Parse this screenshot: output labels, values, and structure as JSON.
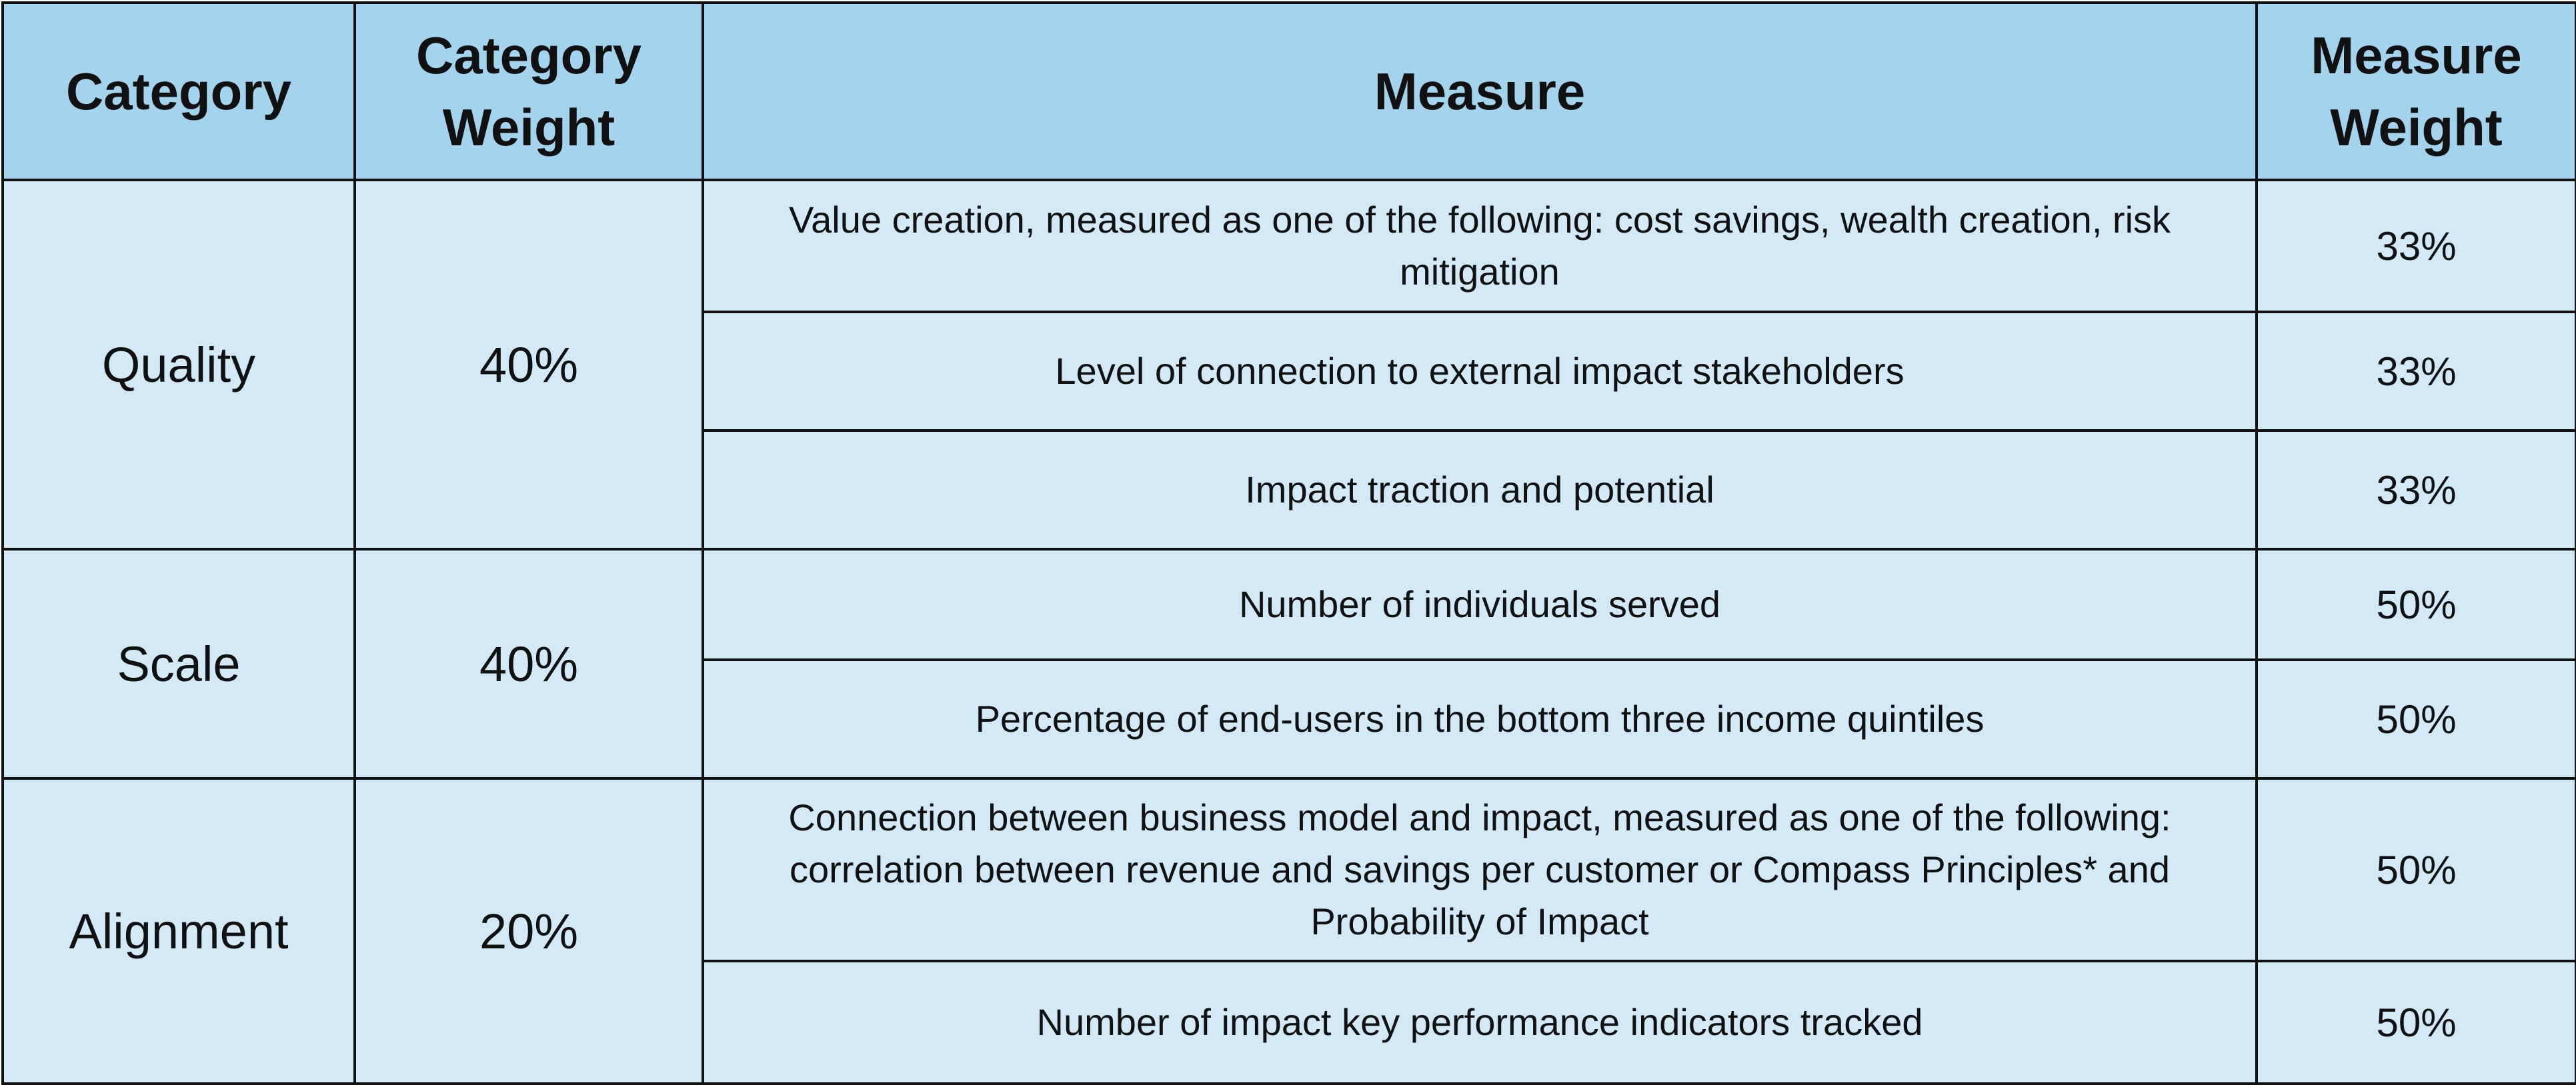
{
  "header": {
    "category": "Category",
    "category_weight": "Category Weight",
    "measure": "Measure",
    "measure_weight": "Measure Weight"
  },
  "categories": [
    {
      "name": "Quality",
      "weight": "40%",
      "measures": [
        {
          "text": "Value creation, measured as one of the following: cost savings, wealth creation, risk mitigation",
          "weight": "33%"
        },
        {
          "text": "Level of connection to external impact stakeholders",
          "weight": "33%"
        },
        {
          "text": "Impact traction and potential",
          "weight": "33%"
        }
      ]
    },
    {
      "name": "Scale",
      "weight": "40%",
      "measures": [
        {
          "text": "Number of individuals served",
          "weight": "50%"
        },
        {
          "text": "Percentage of end-users in the bottom three income quintiles",
          "weight": "50%"
        }
      ]
    },
    {
      "name": "Alignment",
      "weight": "20%",
      "measures": [
        {
          "text": "Connection between business model and impact, measured as one of the following: correlation between revenue and savings per customer or Compass Principles* and Probability of Impact",
          "weight": "50%"
        },
        {
          "text": "Number of impact key performance indicators tracked",
          "weight": "50%"
        }
      ]
    }
  ],
  "colors": {
    "header_bg": "#a4d3ee",
    "body_bg": "#d3eaf6",
    "border": "#111111"
  }
}
